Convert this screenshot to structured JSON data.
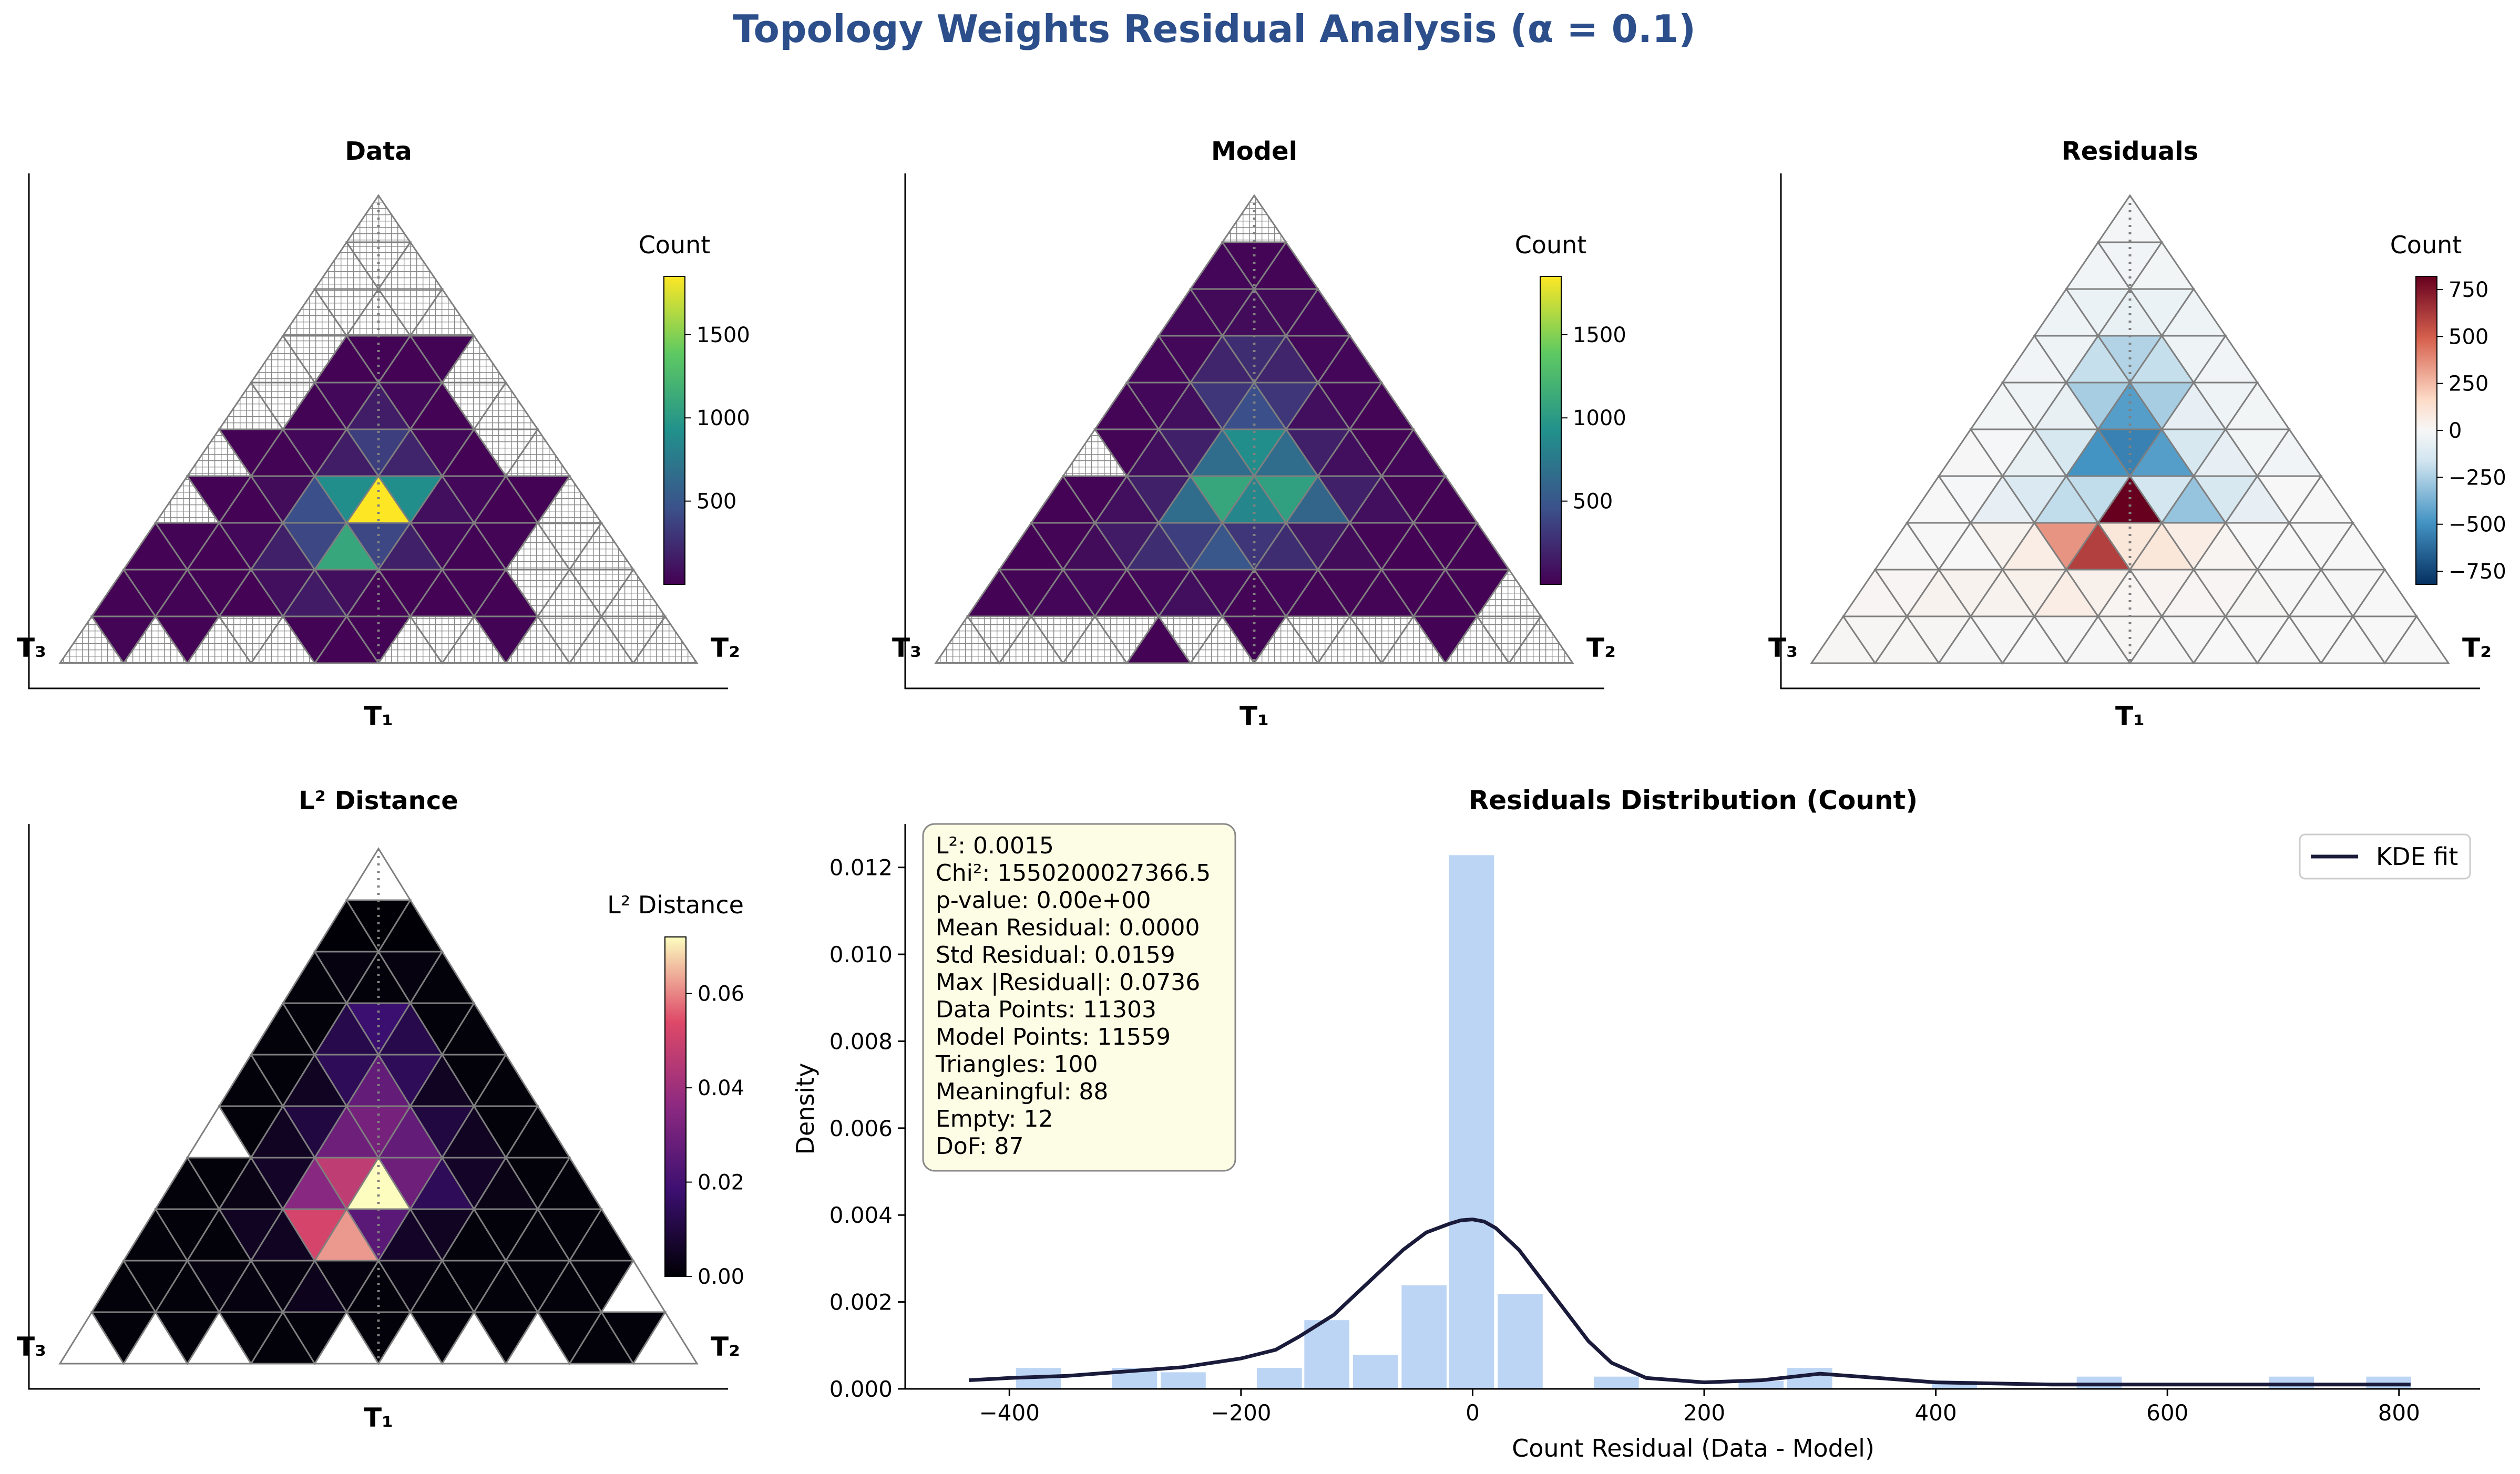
{
  "figure": {
    "suptitle": "Topology Weights Residual Analysis (α = 0.1)",
    "suptitle_color": "#2c4f8c"
  },
  "colors": {
    "grid_stroke": "#7f7f7f",
    "hatch": "#888888",
    "hist_bar": "#bcd5f5",
    "kde_line": "#1a1a3a",
    "dotted_axis": "#808080",
    "textbox_fill": "#fdfde5",
    "textbox_stroke": "#888888"
  },
  "panels": {
    "data": {
      "title": "Data",
      "cbar_label": "Count",
      "vertex_left": "T₃",
      "vertex_right": "T₂",
      "vertex_bottom": "T₁",
      "colormap": "viridis",
      "ticks": [
        "500",
        "1000",
        "1500"
      ]
    },
    "model": {
      "title": "Model",
      "cbar_label": "Count",
      "vertex_left": "T₃",
      "vertex_right": "T₂",
      "vertex_bottom": "T₁",
      "colormap": "viridis",
      "ticks": [
        "500",
        "1000",
        "1500"
      ]
    },
    "residuals": {
      "title": "Residuals",
      "cbar_label": "Count",
      "vertex_left": "T₃",
      "vertex_right": "T₂",
      "vertex_bottom": "T₁",
      "colormap": "RdBu_r",
      "ticks": [
        "750",
        "500",
        "250",
        "0",
        "−250",
        "−500",
        "−750"
      ]
    },
    "l2": {
      "title": "L² Distance",
      "cbar_label": "L² Distance",
      "vertex_left": "T₃",
      "vertex_right": "T₂",
      "vertex_bottom": "T₁",
      "colormap": "magma",
      "ticks": [
        "0.00",
        "0.02",
        "0.04",
        "0.06"
      ]
    }
  },
  "chart_data": [
    {
      "type": "heatmap",
      "title": "Data",
      "colorbar_label": "Count",
      "colorbar_range": [
        0,
        1850
      ],
      "colormap": "viridis",
      "grid": "ternary triangle, 10 rows (row 0 at apex), null = hatched empty cell",
      "rows": [
        [
          null
        ],
        [
          null,
          null,
          null
        ],
        [
          null,
          null,
          null,
          null,
          null
        ],
        [
          null,
          null,
          10,
          15,
          10,
          15,
          null
        ],
        [
          null,
          null,
          15,
          40,
          160,
          40,
          10,
          null,
          null
        ],
        [
          null,
          10,
          15,
          40,
          160,
          350,
          200,
          40,
          10,
          null,
          null
        ],
        [
          null,
          10,
          10,
          60,
          450,
          900,
          1850,
          900,
          80,
          40,
          10,
          10,
          null
        ],
        [
          10,
          15,
          10,
          40,
          180,
          400,
          1100,
          400,
          180,
          40,
          15,
          20,
          null,
          null,
          null
        ],
        [
          10,
          15,
          15,
          15,
          10,
          80,
          150,
          80,
          20,
          15,
          10,
          15,
          10,
          null,
          null,
          null,
          null
        ],
        [
          null,
          20,
          null,
          10,
          null,
          null,
          null,
          15,
          10,
          15,
          null,
          null,
          null,
          15,
          null,
          null,
          null,
          null,
          null
        ]
      ]
    },
    {
      "type": "heatmap",
      "title": "Model",
      "colorbar_label": "Count",
      "colorbar_range": [
        0,
        1850
      ],
      "colormap": "viridis",
      "grid": "ternary triangle, 10 rows (row 0 at apex), null = hatched empty cell",
      "rows": [
        [
          null
        ],
        [
          30,
          25,
          20
        ],
        [
          40,
          50,
          60,
          50,
          40
        ],
        [
          30,
          40,
          200,
          250,
          200,
          40,
          30
        ],
        [
          20,
          40,
          80,
          300,
          450,
          300,
          80,
          40,
          20
        ],
        [
          null,
          20,
          80,
          180,
          650,
          900,
          650,
          180,
          80,
          20,
          30
        ],
        [
          10,
          20,
          80,
          180,
          650,
          1100,
          850,
          1050,
          600,
          180,
          80,
          20,
          10
        ],
        [
          10,
          20,
          60,
          150,
          250,
          350,
          500,
          300,
          250,
          150,
          60,
          20,
          10,
          10,
          10
        ],
        [
          10,
          20,
          30,
          40,
          20,
          40,
          80,
          40,
          20,
          30,
          20,
          20,
          20,
          10,
          10,
          10,
          null
        ],
        [
          null,
          null,
          null,
          null,
          null,
          null,
          10,
          null,
          null,
          15,
          null,
          null,
          null,
          null,
          null,
          10,
          null,
          null,
          null
        ]
      ]
    },
    {
      "type": "heatmap",
      "title": "Residuals",
      "colorbar_label": "Count",
      "colorbar_range": [
        -820,
        820
      ],
      "colormap": "RdBu_r",
      "grid": "ternary triangle, 10 rows (row 0 at apex)",
      "rows": [
        [
          -15
        ],
        [
          -30,
          -25,
          -20
        ],
        [
          -40,
          -50,
          -60,
          -50,
          -40
        ],
        [
          -30,
          -40,
          -190,
          -235,
          -190,
          -40,
          -30
        ],
        [
          -20,
          -40,
          -65,
          -260,
          -450,
          -260,
          -70,
          -40,
          -20
        ],
        [
          -5,
          -10,
          -65,
          -140,
          -490,
          -550,
          -450,
          -140,
          -70,
          -20,
          -30
        ],
        [
          0,
          -10,
          -70,
          -120,
          -200,
          -200,
          820,
          -150,
          -300,
          -140,
          -70,
          0,
          0
        ],
        [
          0,
          0,
          0,
          30,
          60,
          350,
          600,
          100,
          100,
          60,
          20,
          0,
          0,
          0,
          0
        ],
        [
          15,
          15,
          30,
          30,
          30,
          40,
          60,
          40,
          20,
          25,
          15,
          15,
          10,
          5,
          5,
          5,
          0
        ],
        [
          10,
          10,
          10,
          10,
          5,
          5,
          0,
          5,
          5,
          10,
          5,
          5,
          0,
          0,
          0,
          0,
          0,
          0,
          0
        ]
      ]
    },
    {
      "type": "heatmap",
      "title": "L² Distance",
      "colorbar_label": "L² Distance",
      "colorbar_range": [
        0,
        0.072
      ],
      "colormap": "magma",
      "grid": "ternary triangle, 10 rows (row 0 at apex), null = white empty cell",
      "rows": [
        [
          null
        ],
        [
          0.0005,
          0.0005,
          0.0005
        ],
        [
          0.001,
          0.002,
          0.001,
          0.002,
          0.001
        ],
        [
          0.001,
          0.001,
          0.012,
          0.018,
          0.012,
          0.001,
          0.001
        ],
        [
          0.001,
          0.001,
          0.005,
          0.014,
          0.027,
          0.014,
          0.005,
          0.001,
          0.001
        ],
        [
          null,
          0.001,
          0.005,
          0.01,
          0.029,
          0.031,
          0.027,
          0.01,
          0.005,
          0.001,
          0.001
        ],
        [
          0.001,
          0.001,
          0.003,
          0.006,
          0.035,
          0.047,
          0.072,
          0.029,
          0.014,
          0.006,
          0.003,
          0.001,
          0.001
        ],
        [
          0.001,
          0.001,
          0.001,
          0.005,
          0.005,
          0.052,
          0.062,
          0.025,
          0.006,
          0.005,
          0.001,
          0.001,
          0.001,
          0.001,
          0.001
        ],
        [
          0.001,
          0.001,
          0.001,
          0.002,
          0.002,
          0.002,
          0.004,
          0.002,
          0.001,
          0.002,
          0.001,
          0.001,
          0.001,
          0.001,
          0.001,
          0.001,
          null
        ],
        [
          null,
          0.001,
          null,
          0.001,
          null,
          0.001,
          0.001,
          0.001,
          null,
          0.001,
          null,
          0.001,
          null,
          0.001,
          null,
          0.001,
          0.001,
          0.001,
          null
        ]
      ]
    },
    {
      "type": "bar",
      "title": "Residuals Distribution (Count)",
      "xlabel": "Count Residual (Data - Model)",
      "ylabel": "Density",
      "xlim": [
        -490,
        870
      ],
      "ylim": [
        0,
        0.013
      ],
      "xticks": [
        -400,
        -200,
        0,
        200,
        400,
        600,
        800
      ],
      "yticks": [
        0.0,
        0.002,
        0.004,
        0.006,
        0.008,
        0.01,
        0.012
      ],
      "bin_width": 41.6,
      "histogram_series_label": "",
      "bins": [
        {
          "left": -395,
          "density": 0.0005
        },
        {
          "left": -312,
          "density": 0.0005
        },
        {
          "left": -270,
          "density": 0.0004
        },
        {
          "left": -187,
          "density": 0.0005
        },
        {
          "left": -146,
          "density": 0.0016
        },
        {
          "left": -104,
          "density": 0.0008
        },
        {
          "left": -62,
          "density": 0.0024
        },
        {
          "left": -21,
          "density": 0.0123
        },
        {
          "left": 21,
          "density": 0.0022
        },
        {
          "left": 104,
          "density": 0.0003
        },
        {
          "left": 229,
          "density": 0.0002
        },
        {
          "left": 271,
          "density": 0.0005
        },
        {
          "left": 396,
          "density": 0.0002
        },
        {
          "left": 521,
          "density": 0.0003
        },
        {
          "left": 687,
          "density": 0.0003
        },
        {
          "left": 771,
          "density": 0.0003
        }
      ],
      "kde": {
        "label": "KDE fit",
        "x": [
          -435,
          -400,
          -350,
          -300,
          -250,
          -200,
          -170,
          -150,
          -120,
          -100,
          -80,
          -60,
          -40,
          -20,
          -10,
          0,
          10,
          20,
          40,
          60,
          80,
          100,
          120,
          150,
          200,
          250,
          300,
          350,
          400,
          500,
          600,
          700,
          810
        ],
        "y": [
          0.0002,
          0.00025,
          0.0003,
          0.0004,
          0.0005,
          0.0007,
          0.0009,
          0.0012,
          0.0017,
          0.0022,
          0.0027,
          0.0032,
          0.0036,
          0.0038,
          0.00388,
          0.0039,
          0.00385,
          0.0037,
          0.0032,
          0.0025,
          0.0018,
          0.0011,
          0.0006,
          0.00025,
          0.00015,
          0.0002,
          0.00035,
          0.00025,
          0.00015,
          0.0001,
          0.0001,
          0.0001,
          0.0001
        ]
      },
      "legend": {
        "entries": [
          "KDE fit"
        ],
        "placement": "top-right"
      },
      "stats_box": [
        "L²: 0.0015",
        "Chi²: 1550200027366.5",
        "p-value: 0.00e+00",
        "Mean Residual: 0.0000",
        "Std Residual: 0.0159",
        "Max |Residual|: 0.0736",
        "Data Points: 11303",
        "Model Points: 11559",
        "Triangles: 100",
        "Meaningful: 88",
        "Empty: 12",
        "DoF: 87"
      ]
    }
  ]
}
